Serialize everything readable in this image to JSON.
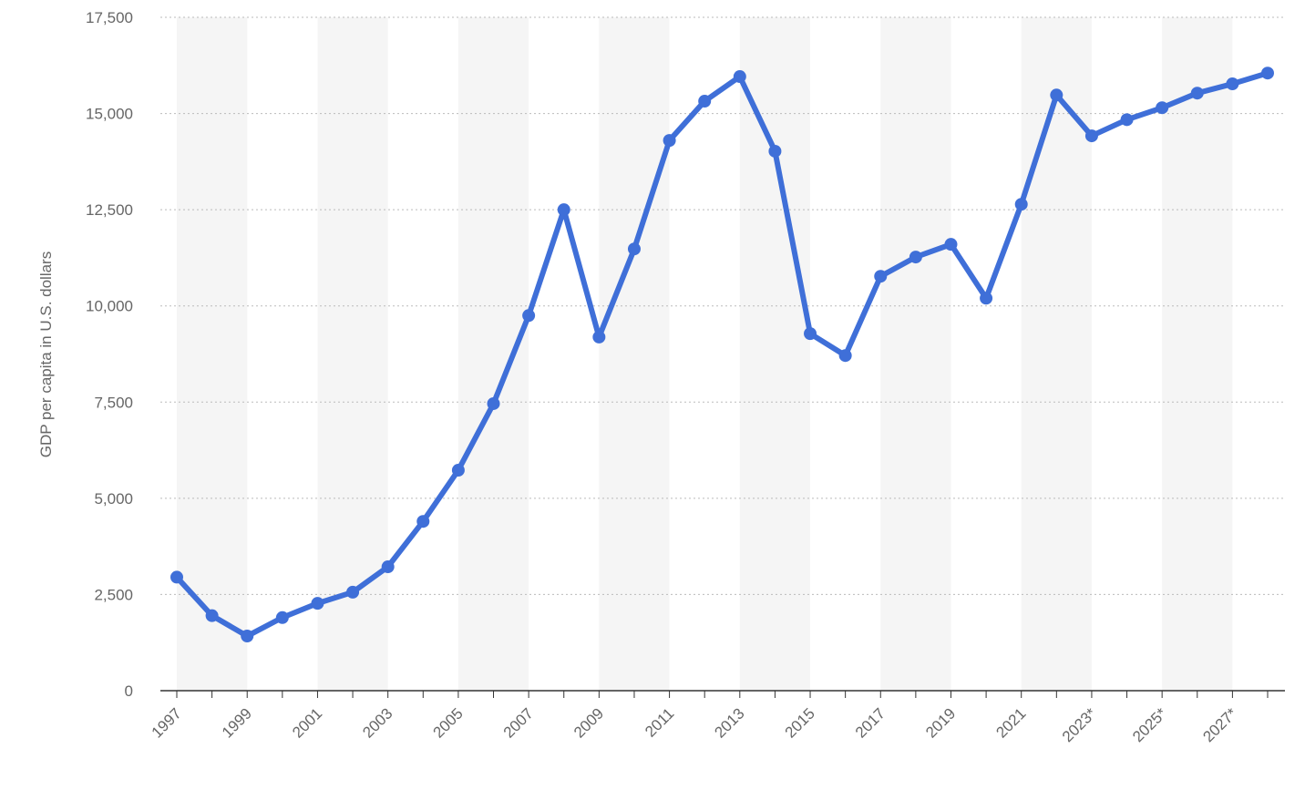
{
  "chart_data": {
    "type": "line",
    "y_label": "GDP per capita in U.S. dollars",
    "categories": [
      "1997",
      null,
      "1999",
      null,
      "2001",
      null,
      "2003",
      null,
      "2005",
      null,
      "2007",
      null,
      "2009",
      null,
      "2011",
      null,
      "2013",
      null,
      "2015",
      null,
      "2017",
      null,
      "2019",
      null,
      "2021",
      null,
      "2023*",
      null,
      "2025*",
      null,
      "2027*",
      null
    ],
    "values": [
      2950,
      1950,
      1420,
      1900,
      2270,
      2560,
      3220,
      4400,
      5730,
      7460,
      9750,
      12500,
      9190,
      11480,
      14300,
      15320,
      15960,
      14020,
      9280,
      8710,
      10770,
      11270,
      11600,
      10200,
      12640,
      15480,
      14420,
      14840,
      15150,
      15530,
      15770,
      16050
    ],
    "color": "#3f6fd8",
    "ylim": [
      0,
      17500
    ],
    "yticks": [
      0,
      {
        "value": 2500,
        "label": "2,500"
      },
      {
        "value": 5000,
        "label": "5,000"
      },
      {
        "value": 7500,
        "label": "7,500"
      },
      {
        "value": 10000,
        "label": "10,000"
      },
      {
        "value": 12500,
        "label": "12,500"
      },
      {
        "value": 15000,
        "label": "15,000"
      },
      {
        "value": 17500,
        "label": "17,500"
      }
    ],
    "grid": true
  }
}
